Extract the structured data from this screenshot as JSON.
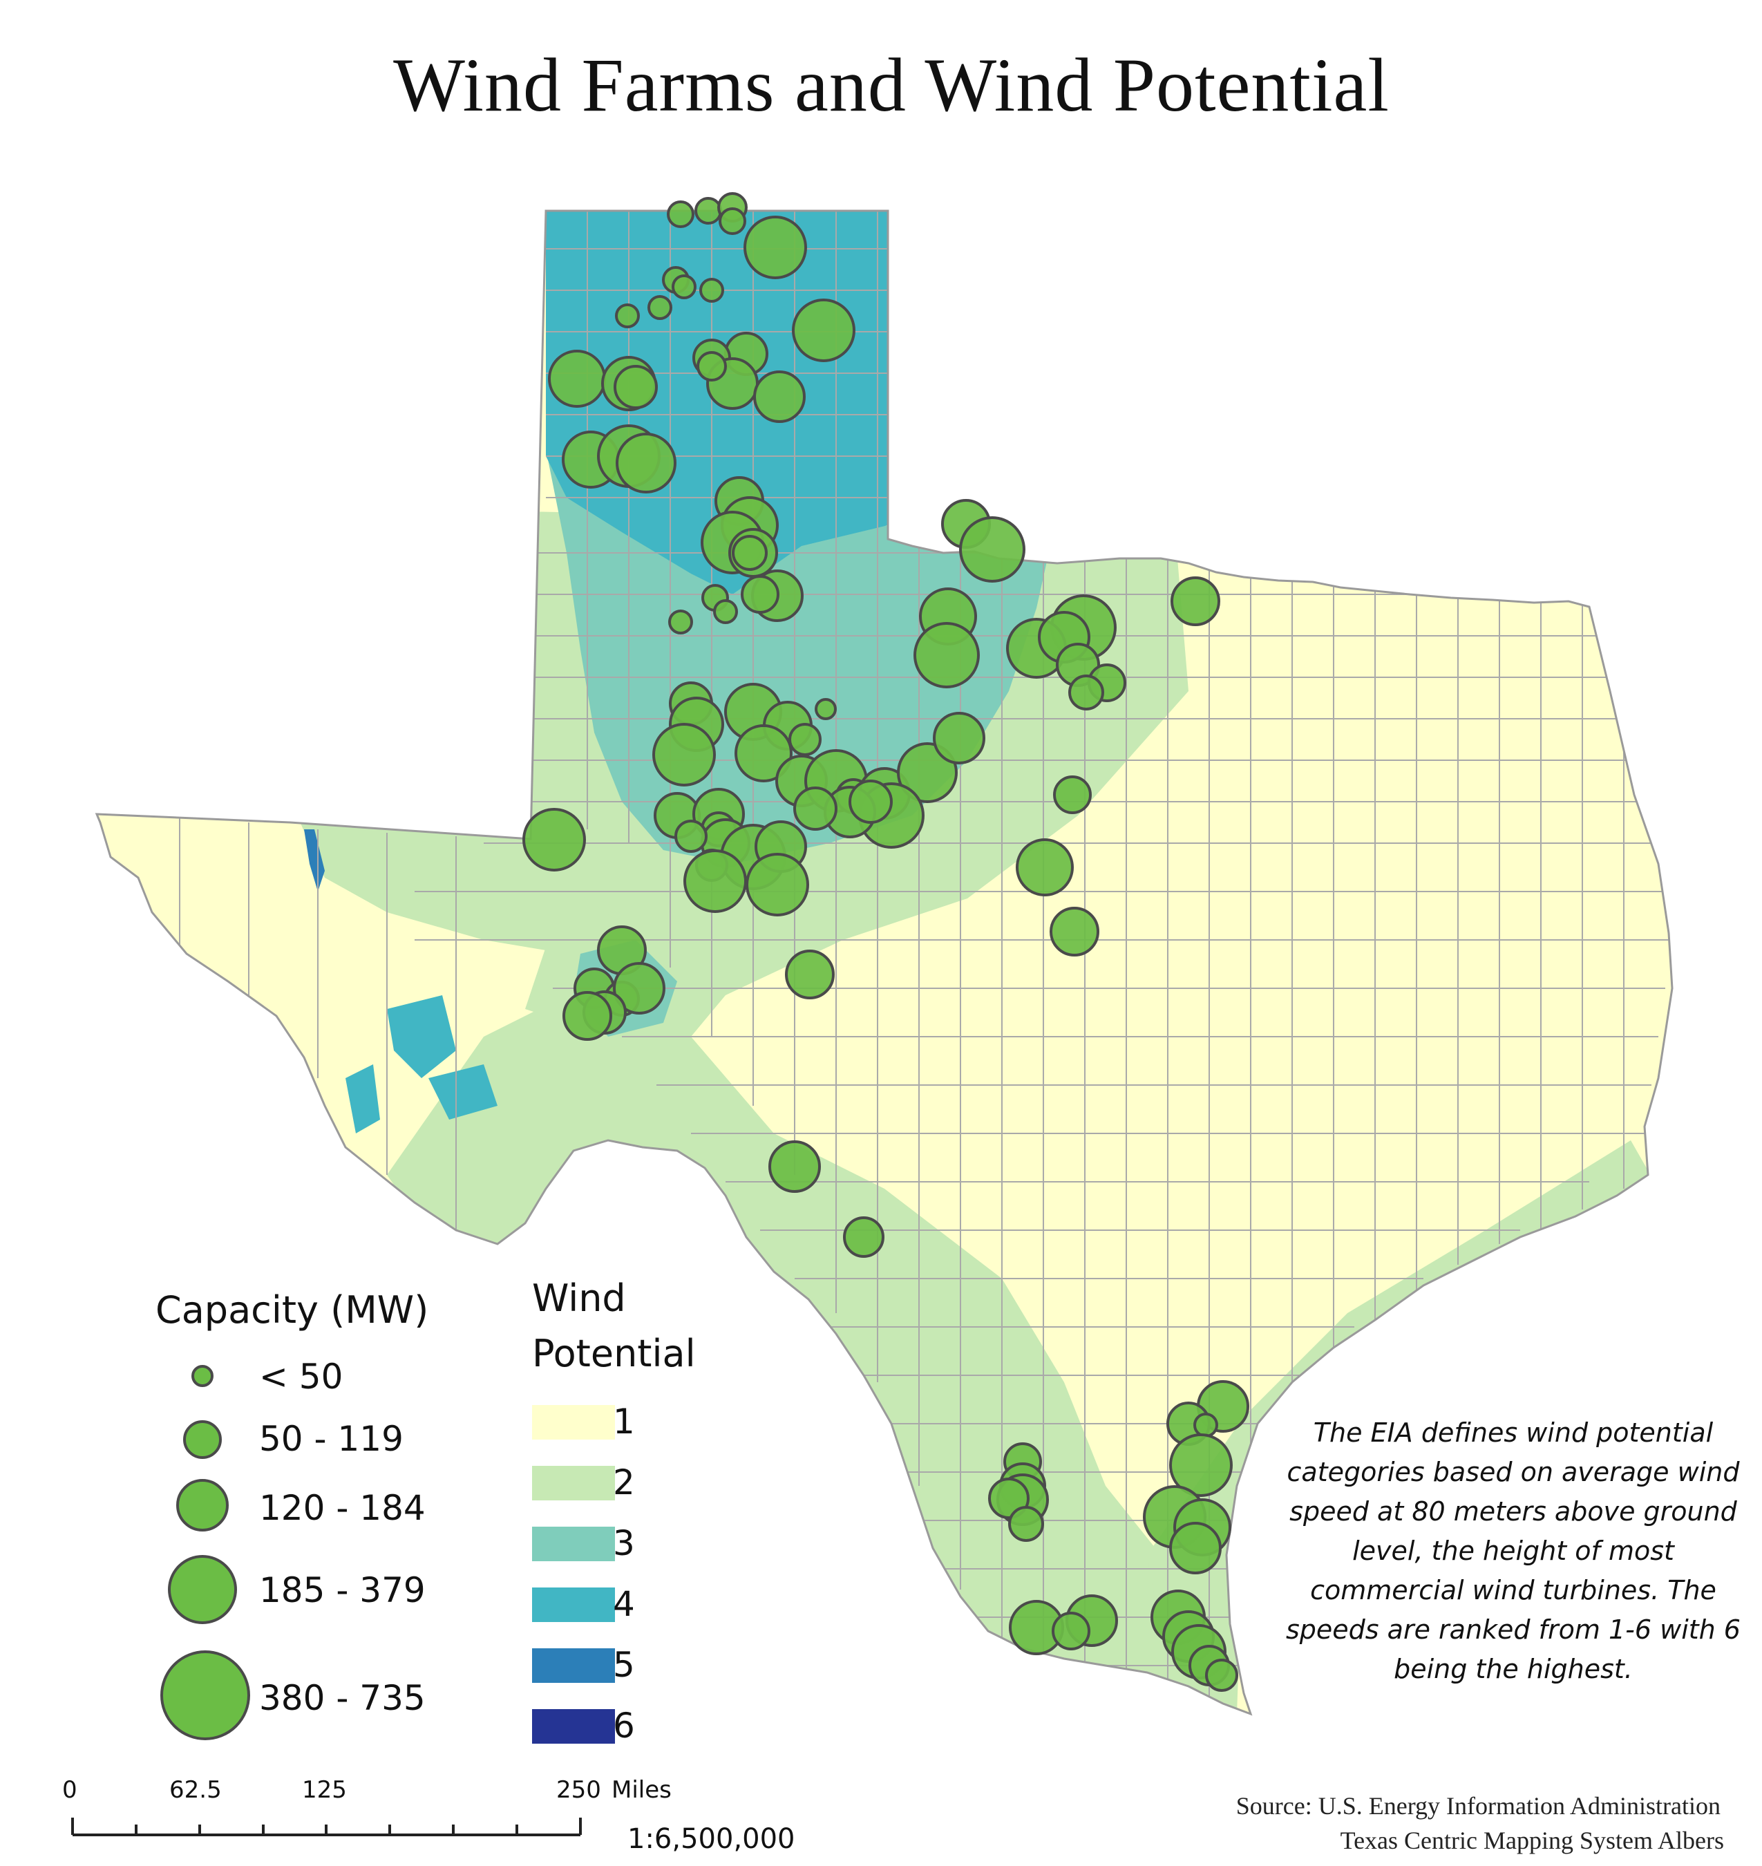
{
  "title": "Wind Farms and Wind Potential",
  "capacity_legend": {
    "heading": "Capacity (MW)",
    "classes": [
      {
        "label": "< 50"
      },
      {
        "label": "50 - 119"
      },
      {
        "label": "120 - 184"
      },
      {
        "label": "185 - 379"
      },
      {
        "label": "380 - 735"
      }
    ]
  },
  "potential_legend": {
    "heading_line1": "Wind",
    "heading_line2": "Potential",
    "classes": [
      {
        "label": "1",
        "color": "#ffffcc"
      },
      {
        "label": "2",
        "color": "#c7e9b4"
      },
      {
        "label": "3",
        "color": "#7fcdbb"
      },
      {
        "label": "4",
        "color": "#41b6c4"
      },
      {
        "label": "5",
        "color": "#2c7fb8"
      },
      {
        "label": "6",
        "color": "#253494"
      }
    ]
  },
  "note": "The EIA defines wind potential categories based on average wind speed at 80 meters above ground level, the height of most commercial wind turbines. The speeds are ranked from 1-6 with 6 being the highest.",
  "source": {
    "line1": "Source: U.S. Energy Information Administration",
    "line2": "Texas Centric Mapping System Albers"
  },
  "scale_bar": {
    "ticks": [
      "0",
      "62.5",
      "125",
      "250"
    ],
    "unit": "Miles",
    "ratio": "1:6,500,000"
  },
  "colors": {
    "bubble_fill": "#6bbd45",
    "bubble_stroke": "#4a4a4a",
    "county_line": "#a9a9a9"
  }
}
